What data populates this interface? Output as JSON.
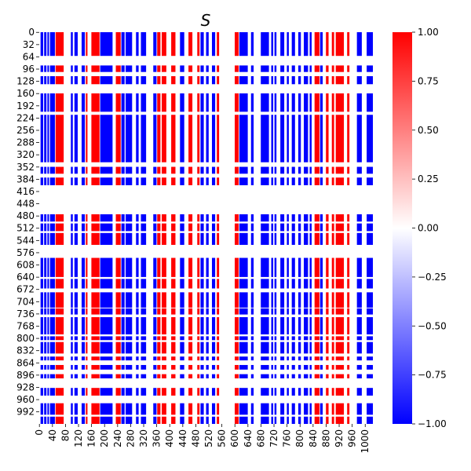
{
  "chart_data": {
    "type": "heatmap",
    "title": "S",
    "xlabel": "",
    "ylabel": "",
    "rows": 1024,
    "cols": 1024,
    "x_tick_labels": [
      "0",
      "40",
      "80",
      "120",
      "160",
      "200",
      "240",
      "280",
      "320",
      "360",
      "400",
      "440",
      "480",
      "520",
      "560",
      "600",
      "640",
      "680",
      "720",
      "760",
      "800",
      "840",
      "880",
      "920",
      "960",
      "1000"
    ],
    "y_tick_labels": [
      "0",
      "32",
      "64",
      "96",
      "128",
      "160",
      "192",
      "224",
      "256",
      "288",
      "320",
      "352",
      "384",
      "416",
      "448",
      "480",
      "512",
      "544",
      "576",
      "608",
      "640",
      "672",
      "704",
      "736",
      "768",
      "800",
      "832",
      "864",
      "896",
      "928",
      "960",
      "992"
    ],
    "colorbar": {
      "min": -1.0,
      "max": 1.0,
      "tick_labels": [
        "1.00",
        "0.75",
        "0.50",
        "0.25",
        "0.00",
        "−0.25",
        "−0.50",
        "−0.75",
        "−1.00"
      ],
      "tick_values": [
        1.0,
        0.75,
        0.5,
        0.25,
        0.0,
        -0.25,
        -0.5,
        -0.75,
        -1.0
      ],
      "colors": {
        "negative": "#0000ff",
        "zero": "#ffffff",
        "positive": "#ff0000"
      }
    },
    "row_bands_active": [
      [
        0,
        62
      ],
      [
        87,
        104
      ],
      [
        115,
        136
      ],
      [
        160,
        208
      ],
      [
        216,
        340
      ],
      [
        352,
        370
      ],
      [
        380,
        400
      ],
      [
        476,
        495
      ],
      [
        500,
        520
      ],
      [
        525,
        556
      ],
      [
        590,
        640
      ],
      [
        645,
        670
      ],
      [
        680,
        720
      ],
      [
        722,
        738
      ],
      [
        745,
        790
      ],
      [
        795,
        805
      ],
      [
        810,
        840
      ],
      [
        848,
        858
      ],
      [
        870,
        882
      ],
      [
        894,
        905
      ],
      [
        930,
        950
      ],
      [
        970,
        1000
      ],
      [
        1005,
        1024
      ]
    ],
    "column_pattern": [
      {
        "x0": 4,
        "x1": 12,
        "sign": -1
      },
      {
        "x0": 15,
        "x1": 22,
        "sign": -1
      },
      {
        "x0": 25,
        "x1": 30,
        "sign": -1
      },
      {
        "x0": 33,
        "x1": 48,
        "sign": -1
      },
      {
        "x0": 50,
        "x1": 75,
        "sign": 1
      },
      {
        "x0": 97,
        "x1": 103,
        "sign": -1
      },
      {
        "x0": 108,
        "x1": 118,
        "sign": -1
      },
      {
        "x0": 130,
        "x1": 140,
        "sign": -1
      },
      {
        "x0": 143,
        "x1": 148,
        "sign": 1
      },
      {
        "x0": 160,
        "x1": 185,
        "sign": 1
      },
      {
        "x0": 187,
        "x1": 225,
        "sign": -1
      },
      {
        "x0": 235,
        "x1": 250,
        "sign": 1
      },
      {
        "x0": 252,
        "x1": 262,
        "sign": -1
      },
      {
        "x0": 265,
        "x1": 285,
        "sign": -1
      },
      {
        "x0": 297,
        "x1": 305,
        "sign": -1
      },
      {
        "x0": 312,
        "x1": 328,
        "sign": -1
      },
      {
        "x0": 350,
        "x1": 360,
        "sign": -1
      },
      {
        "x0": 362,
        "x1": 372,
        "sign": 1
      },
      {
        "x0": 376,
        "x1": 390,
        "sign": 1
      },
      {
        "x0": 405,
        "x1": 418,
        "sign": 1
      },
      {
        "x0": 432,
        "x1": 445,
        "sign": -1
      },
      {
        "x0": 458,
        "x1": 470,
        "sign": 1
      },
      {
        "x0": 485,
        "x1": 492,
        "sign": 1
      },
      {
        "x0": 495,
        "x1": 505,
        "sign": -1
      },
      {
        "x0": 512,
        "x1": 520,
        "sign": -1
      },
      {
        "x0": 530,
        "x1": 540,
        "sign": -1
      },
      {
        "x0": 545,
        "x1": 552,
        "sign": 1
      },
      {
        "x0": 600,
        "x1": 612,
        "sign": 1
      },
      {
        "x0": 614,
        "x1": 640,
        "sign": -1
      },
      {
        "x0": 650,
        "x1": 658,
        "sign": -1
      },
      {
        "x0": 680,
        "x1": 705,
        "sign": -1
      },
      {
        "x0": 712,
        "x1": 718,
        "sign": -1
      },
      {
        "x0": 722,
        "x1": 728,
        "sign": -1
      },
      {
        "x0": 740,
        "x1": 752,
        "sign": -1
      },
      {
        "x0": 760,
        "x1": 766,
        "sign": -1
      },
      {
        "x0": 775,
        "x1": 785,
        "sign": -1
      },
      {
        "x0": 795,
        "x1": 803,
        "sign": -1
      },
      {
        "x0": 812,
        "x1": 825,
        "sign": -1
      },
      {
        "x0": 830,
        "x1": 836,
        "sign": -1
      },
      {
        "x0": 845,
        "x1": 860,
        "sign": 1
      },
      {
        "x0": 862,
        "x1": 870,
        "sign": -1
      },
      {
        "x0": 880,
        "x1": 888,
        "sign": 1
      },
      {
        "x0": 898,
        "x1": 905,
        "sign": 1
      },
      {
        "x0": 910,
        "x1": 935,
        "sign": 1
      },
      {
        "x0": 945,
        "x1": 952,
        "sign": 1
      },
      {
        "x0": 975,
        "x1": 990,
        "sign": -1
      },
      {
        "x0": 1005,
        "x1": 1024,
        "sign": -1
      }
    ]
  }
}
